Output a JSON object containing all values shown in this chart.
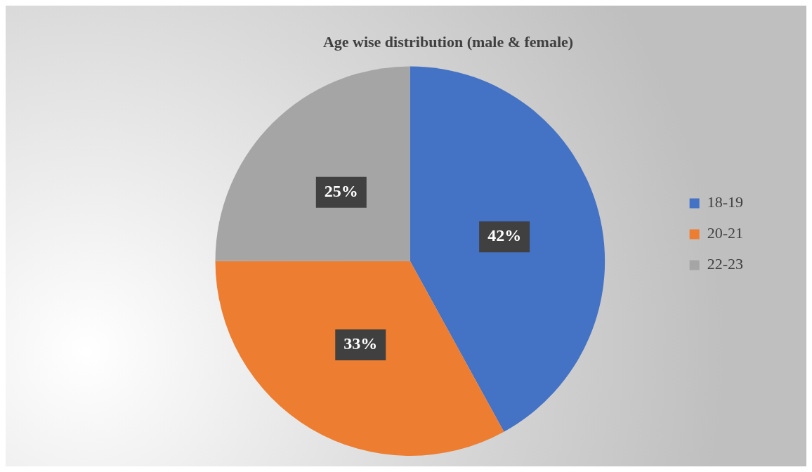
{
  "chart_data": {
    "type": "pie",
    "title": "Age wise distribution (male & female)",
    "categories": [
      "18-19",
      "20-21",
      "22-23"
    ],
    "values": [
      42,
      33,
      25
    ],
    "value_labels": [
      "42%",
      "33%",
      "25%"
    ],
    "colors": [
      "#4472c4",
      "#ed7d31",
      "#a5a5a5"
    ],
    "legend": "right"
  }
}
